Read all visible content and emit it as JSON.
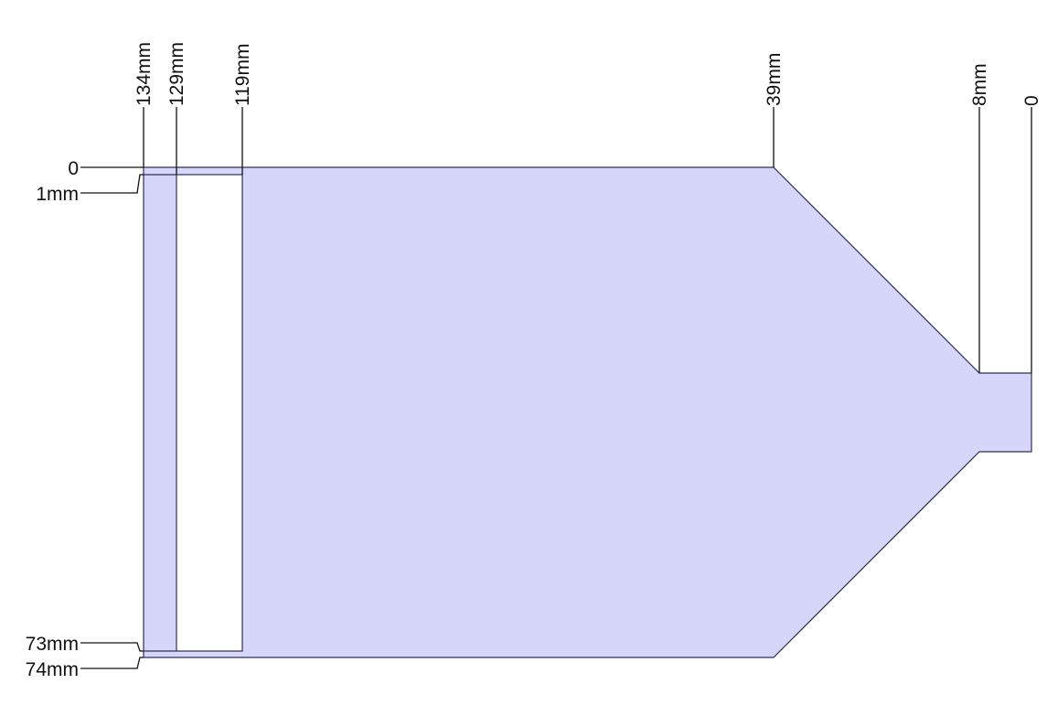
{
  "drawing": {
    "fill_color": "#d6d6fb",
    "cutout_color": "#ffffff",
    "outline_color": "#2e2e58",
    "line_color": "#111111"
  },
  "top_dimensions": {
    "d134": "134mm",
    "d129": "129mm",
    "d119": "119mm",
    "d39": "39mm",
    "d8": "8mm",
    "d0": "0"
  },
  "left_dimensions": {
    "d0": "0",
    "d1": "1mm",
    "d73": "73mm",
    "d74": "74mm"
  }
}
